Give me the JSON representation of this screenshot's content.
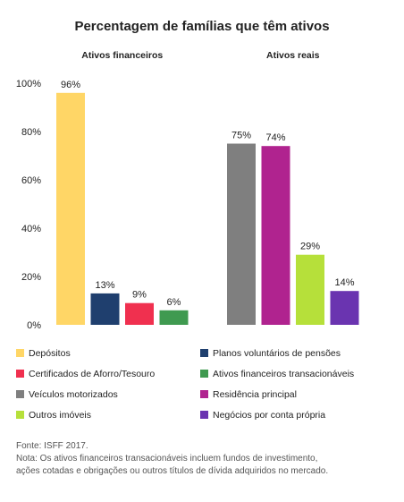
{
  "chart_data": {
    "type": "bar",
    "title": "Percentagem de famílias que têm ativos",
    "ylim": [
      0,
      100
    ],
    "yticks": [
      "0%",
      "20%",
      "40%",
      "60%",
      "80%",
      "100%"
    ],
    "ytick_values": [
      0,
      20,
      40,
      60,
      80,
      100
    ],
    "grid": false,
    "legend_position": "bottom",
    "groups": [
      {
        "label": "Ativos financeiros",
        "bars": [
          {
            "name": "Depósitos",
            "value": 96,
            "label": "96%",
            "color": "#ffd666"
          },
          {
            "name": "Planos voluntários de pensões",
            "value": 13,
            "label": "13%",
            "color": "#1f3f6e"
          },
          {
            "name": "Certificados de Aforro/Tesouro",
            "value": 9,
            "label": "9%",
            "color": "#f0304f"
          },
          {
            "name": "Ativos financeiros transacionáveis",
            "value": 6,
            "label": "6%",
            "color": "#3f9a50"
          }
        ]
      },
      {
        "label": "Ativos reais",
        "bars": [
          {
            "name": "Veículos motorizados",
            "value": 75,
            "label": "75%",
            "color": "#7f7f7f"
          },
          {
            "name": "Residência principal",
            "value": 74,
            "label": "74%",
            "color": "#b0238f"
          },
          {
            "name": "Outros imóveis",
            "value": 29,
            "label": "29%",
            "color": "#b6e03a"
          },
          {
            "name": "Negócios por conta própria",
            "value": 14,
            "label": "14%",
            "color": "#6a34b0"
          }
        ]
      }
    ]
  },
  "legend": [
    {
      "label": "Depósitos",
      "color": "#ffd666"
    },
    {
      "label": "Planos voluntários de pensões",
      "color": "#1f3f6e"
    },
    {
      "label": "Certificados de Aforro/Tesouro",
      "color": "#f0304f"
    },
    {
      "label": "Ativos financeiros transacionáveis",
      "color": "#3f9a50"
    },
    {
      "label": "Veículos motorizados",
      "color": "#7f7f7f"
    },
    {
      "label": "Residência principal",
      "color": "#b0238f"
    },
    {
      "label": "Outros imóveis",
      "color": "#b6e03a"
    },
    {
      "label": "Negócios por conta própria",
      "color": "#6a34b0"
    }
  ],
  "footer": {
    "source": "Fonte: ISFF 2017.",
    "note_line1": "Nota: Os ativos financeiros transacionáveis incluem fundos de investimento,",
    "note_line2": "ações cotadas e obrigações ou outros títulos de dívida adquiridos no mercado."
  }
}
